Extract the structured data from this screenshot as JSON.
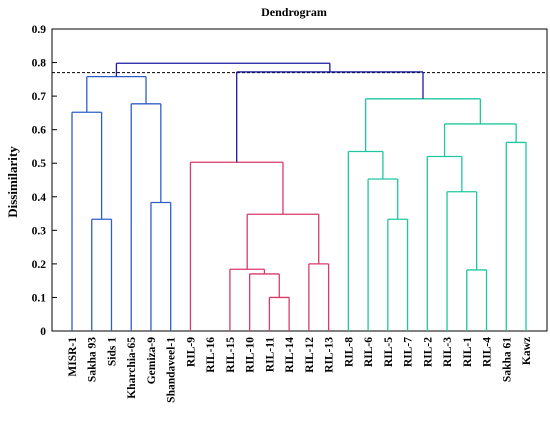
{
  "chart_data": {
    "type": "dendrogram",
    "title": "Dendrogram",
    "xlabel": "",
    "ylabel": "Dissimilarity",
    "ylim": [
      0,
      0.9
    ],
    "yticks": [
      "0",
      "0.1",
      "0.2",
      "0.3",
      "0.4",
      "0.5",
      "0.6",
      "0.7",
      "0.8",
      "0.9"
    ],
    "truncation_line": 0.77,
    "grid": false,
    "leaves": [
      "MISR-1",
      "Sakha 93",
      "Sids 1",
      "Kharchia-65",
      "Gemiza-9",
      "Shandaveel-1",
      "RIL-9",
      "RIL-16",
      "RIL-15",
      "RIL-10",
      "RIL-11",
      "RIL-14",
      "RIL-12",
      "RIL-13",
      "RIL-8",
      "RIL-6",
      "RIL-5",
      "RIL-7",
      "RIL-2",
      "RIL-3",
      "RIL-1",
      "RIL-4",
      "Sakha 61",
      "Kawz"
    ],
    "clusters": [
      {
        "color": "#2e5fc7"
      },
      {
        "color": "#d93a6a"
      },
      {
        "color": "#1fc7a0"
      }
    ],
    "root_color": "#1a1aa0",
    "merges": [
      {
        "id": "a",
        "children": [
          1,
          2
        ],
        "height": 0.333,
        "cluster": 0
      },
      {
        "id": "b",
        "children": [
          0,
          "a"
        ],
        "height": 0.652,
        "cluster": 0
      },
      {
        "id": "c",
        "children": [
          4,
          5
        ],
        "height": 0.383,
        "cluster": 0
      },
      {
        "id": "d",
        "children": [
          3,
          "c"
        ],
        "height": 0.677,
        "cluster": 0
      },
      {
        "id": "e",
        "children": [
          "b",
          "d"
        ],
        "height": 0.758,
        "cluster": 0
      },
      {
        "id": "f",
        "children": [
          10,
          11
        ],
        "height": 0.1,
        "cluster": 1
      },
      {
        "id": "g",
        "children": [
          9,
          "f"
        ],
        "height": 0.17,
        "cluster": 1
      },
      {
        "id": "h",
        "children": [
          8,
          "g"
        ],
        "height": 0.184,
        "cluster": 1
      },
      {
        "id": "i",
        "children": [
          12,
          13
        ],
        "height": 0.2,
        "cluster": 1
      },
      {
        "id": "j",
        "children": [
          "h",
          "i"
        ],
        "height": 0.348,
        "cluster": 1
      },
      {
        "id": "k",
        "children": [
          6,
          "j"
        ],
        "height": 0.503,
        "cluster": 1
      },
      {
        "id": "l",
        "children": [
          16,
          17
        ],
        "height": 0.333,
        "cluster": 2
      },
      {
        "id": "m",
        "children": [
          15,
          "l"
        ],
        "height": 0.453,
        "cluster": 2
      },
      {
        "id": "n",
        "children": [
          14,
          "m"
        ],
        "height": 0.535,
        "cluster": 2
      },
      {
        "id": "o",
        "children": [
          20,
          21
        ],
        "height": 0.182,
        "cluster": 2
      },
      {
        "id": "p",
        "children": [
          19,
          "o"
        ],
        "height": 0.415,
        "cluster": 2
      },
      {
        "id": "q",
        "children": [
          18,
          "p"
        ],
        "height": 0.52,
        "cluster": 2
      },
      {
        "id": "r",
        "children": [
          22,
          23
        ],
        "height": 0.562,
        "cluster": 2
      },
      {
        "id": "s",
        "children": [
          "q",
          "r"
        ],
        "height": 0.617,
        "cluster": 2
      },
      {
        "id": "t",
        "children": [
          "n",
          "s"
        ],
        "height": 0.692,
        "cluster": 2
      },
      {
        "id": "u",
        "children": [
          "k",
          "t"
        ],
        "height": 0.772,
        "cluster": "root"
      },
      {
        "id": "v",
        "children": [
          "e",
          "u"
        ],
        "height": 0.798,
        "cluster": "root"
      }
    ]
  }
}
